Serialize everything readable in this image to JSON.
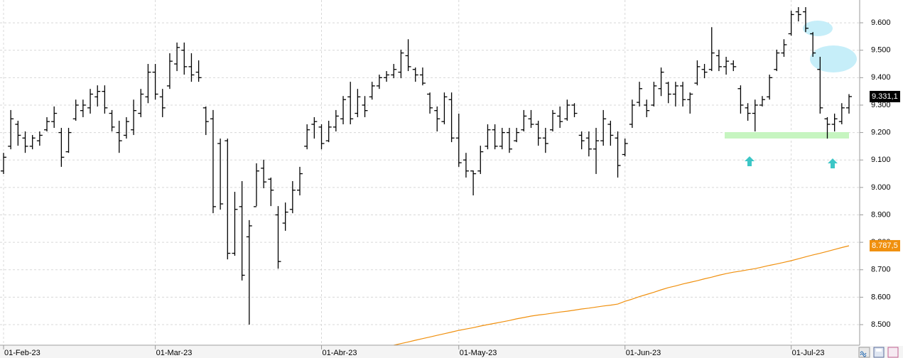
{
  "chart_data": {
    "type": "ohlc",
    "categories": [
      "01-Feb-23",
      null,
      null,
      null,
      null,
      null,
      null,
      null,
      null,
      null,
      null,
      null,
      null,
      null,
      null,
      null,
      null,
      null,
      null,
      null,
      null,
      "01-Mar-23",
      null,
      null,
      null,
      null,
      null,
      null,
      null,
      null,
      null,
      null,
      null,
      null,
      null,
      null,
      null,
      null,
      null,
      null,
      null,
      null,
      null,
      null,
      "01-Abr-23",
      null,
      null,
      null,
      null,
      null,
      null,
      null,
      null,
      null,
      null,
      null,
      null,
      null,
      null,
      null,
      null,
      null,
      null,
      "01-May-23",
      null,
      null,
      null,
      null,
      null,
      null,
      null,
      null,
      null,
      null,
      null,
      null,
      null,
      null,
      null,
      null,
      null,
      null,
      null,
      null,
      null,
      null,
      "01-Jun-23",
      null,
      null,
      null,
      null,
      null,
      null,
      null,
      null,
      null,
      null,
      null,
      null,
      null,
      null,
      null,
      null,
      null,
      null,
      null,
      null,
      null,
      null,
      "01-Jul-23",
      null,
      null,
      null,
      null,
      null,
      null,
      null,
      null
    ],
    "series": [
      {
        "type": "ohlc",
        "color": "#000000",
        "open": [
          9060,
          9150,
          9230,
          9180,
          9150,
          9170,
          9210,
          9240,
          9200,
          9130,
          9250,
          9280,
          9290,
          9330,
          9350,
          9270,
          9200,
          9190,
          9210,
          9270,
          9330,
          9420,
          9330,
          9370,
          9450,
          9500,
          9440,
          9420,
          9290,
          9250,
          9160,
          9170,
          8760,
          8930,
          8820,
          8930,
          9070,
          9030,
          8900,
          8870,
          8920,
          8990,
          9150,
          9230,
          9220,
          9170,
          9220,
          9250,
          9330,
          9270,
          9300,
          9330,
          9370,
          9400,
          9410,
          9420,
          9480,
          9430,
          9410,
          9340,
          9280,
          9240,
          9320,
          9180,
          9100,
          9060,
          9060,
          9150,
          9210,
          9150,
          9200,
          9170,
          9210,
          9250,
          9230,
          9180,
          9210,
          9260,
          9250,
          9300,
          9190,
          9180,
          9140,
          9170,
          9230,
          9180,
          9120,
          9230,
          9310,
          9300,
          9300,
          9360,
          9380,
          9340,
          9370,
          9320,
          9380,
          9430,
          9430,
          9480,
          9440,
          9450,
          9360,
          9290,
          9270,
          9300,
          9330,
          9430,
          9490,
          9560,
          9640,
          9640,
          9560,
          9430,
          9250,
          9230,
          9240,
          9290
        ],
        "high": [
          9126,
          9282,
          9243,
          9204,
          9191,
          9204,
          9256,
          9295,
          9217,
          9217,
          9320,
          9320,
          9359,
          9372,
          9372,
          9282,
          9243,
          9256,
          9320,
          9359,
          9450,
          9450,
          9359,
          9489,
          9528,
          9528,
          9489,
          9463,
          9295,
          9282,
          9178,
          9178,
          8984,
          9023,
          8881,
          9088,
          9101,
          9036,
          8932,
          8945,
          9023,
          9075,
          9230,
          9256,
          9230,
          9243,
          9282,
          9333,
          9385,
          9359,
          9333,
          9385,
          9411,
          9424,
          9450,
          9502,
          9540,
          9437,
          9437,
          9346,
          9295,
          9346,
          9346,
          9269,
          9126,
          9062,
          9152,
          9230,
          9230,
          9217,
          9217,
          9217,
          9282,
          9282,
          9243,
          9217,
          9282,
          9295,
          9320,
          9307,
          9204,
          9204,
          9217,
          9282,
          9243,
          9204,
          9178,
          9320,
          9385,
          9320,
          9385,
          9437,
          9385,
          9385,
          9385,
          9346,
          9463,
          9450,
          9584,
          9502,
          9476,
          9463,
          9372,
          9307,
          9320,
          9333,
          9411,
          9502,
          9540,
          9644,
          9657,
          9657,
          9566,
          9476,
          9256,
          9269,
          9307,
          9340
        ],
        "low": [
          9049,
          9139,
          9152,
          9126,
          9139,
          9152,
          9204,
          9217,
          9075,
          9126,
          9243,
          9256,
          9269,
          9295,
          9269,
          9204,
          9126,
          9178,
          9191,
          9256,
          9307,
          9320,
          9256,
          9359,
          9424,
          9411,
          9385,
          9385,
          9191,
          8906,
          8919,
          8738,
          8751,
          8661,
          8500,
          8932,
          8997,
          8932,
          8704,
          8842,
          8906,
          8971,
          9139,
          9178,
          9139,
          9165,
          9204,
          9230,
          9230,
          9256,
          9256,
          9320,
          9359,
          9385,
          9398,
          9398,
          9424,
          9385,
          9372,
          9269,
          9204,
          9230,
          9165,
          9075,
          9036,
          8971,
          9049,
          9139,
          9139,
          9139,
          9126,
          9165,
          9204,
          9217,
          9152,
          9126,
          9204,
          9217,
          9243,
          9256,
          9139,
          9113,
          9049,
          9152,
          9152,
          9036,
          9113,
          9217,
          9295,
          9256,
          9295,
          9333,
          9307,
          9295,
          9295,
          9269,
          9372,
          9398,
          9424,
          9424,
          9411,
          9424,
          9269,
          9243,
          9204,
          9295,
          9320,
          9424,
          9476,
          9553,
          9605,
          9566,
          9476,
          9269,
          9178,
          9204,
          9230,
          9269
        ],
        "close": [
          9110,
          9250,
          9190,
          9150,
          9180,
          9190,
          9240,
          9270,
          9110,
          9200,
          9300,
          9300,
          9340,
          9350,
          9290,
          9220,
          9170,
          9240,
          9280,
          9340,
          9420,
          9340,
          9290,
          9460,
          9510,
          9440,
          9410,
          9400,
          9240,
          8930,
          8940,
          8760,
          8920,
          8680,
          8860,
          9060,
          9020,
          8990,
          8730,
          8910,
          8990,
          9050,
          9210,
          9240,
          9160,
          9220,
          9260,
          9320,
          9250,
          9330,
          9280,
          9370,
          9400,
          9410,
          9430,
          9490,
          9440,
          9410,
          9380,
          9290,
          9250,
          9330,
          9180,
          9090,
          9060,
          9050,
          9130,
          9210,
          9150,
          9200,
          9140,
          9200,
          9260,
          9230,
          9180,
          9160,
          9270,
          9240,
          9300,
          9270,
          9170,
          9140,
          9170,
          9250,
          9190,
          9080,
          9160,
          9300,
          9360,
          9280,
          9370,
          9420,
          9340,
          9370,
          9320,
          9340,
          9440,
          9420,
          9490,
          9440,
          9460,
          9440,
          9300,
          9270,
          9300,
          9320,
          9400,
          9490,
          9520,
          9630,
          9630,
          9580,
          9490,
          9290,
          9230,
          9250,
          9290,
          9331.1
        ],
        "value_labels": [
          null,
          null,
          null,
          null,
          null,
          null,
          null,
          null,
          null,
          null,
          null,
          null,
          null,
          null,
          null,
          null,
          null,
          null,
          null,
          null,
          null,
          null,
          null,
          null,
          null,
          null,
          null,
          null,
          null,
          null,
          null,
          null,
          null,
          null,
          null,
          null,
          null,
          null,
          null,
          null,
          null,
          null,
          null,
          null,
          null,
          null,
          null,
          null,
          null,
          null,
          null,
          null,
          null,
          null,
          null,
          null,
          null,
          null,
          null,
          null,
          null,
          null,
          null,
          null,
          null,
          null,
          null,
          null,
          null,
          null,
          null,
          null,
          null,
          null,
          null,
          null,
          null,
          null,
          null,
          null,
          null,
          null,
          null,
          null,
          null,
          null,
          null,
          null,
          null,
          null,
          null,
          null,
          null,
          null,
          null,
          null,
          null,
          null,
          null,
          null,
          null,
          null,
          null,
          null,
          null,
          null,
          null,
          null,
          null,
          null,
          null,
          null,
          null,
          null,
          null,
          null,
          null,
          "9.331,1"
        ]
      },
      {
        "type": "line",
        "color": "#f0900e",
        "values": [
          null,
          null,
          null,
          null,
          null,
          null,
          null,
          null,
          null,
          null,
          null,
          null,
          null,
          null,
          null,
          null,
          null,
          null,
          null,
          null,
          null,
          null,
          null,
          null,
          null,
          null,
          null,
          null,
          null,
          null,
          null,
          null,
          null,
          null,
          null,
          null,
          null,
          null,
          null,
          null,
          null,
          null,
          null,
          null,
          null,
          null,
          null,
          null,
          null,
          null,
          null,
          null,
          null,
          null,
          8425,
          8431,
          8437,
          8443,
          8449,
          8455,
          8461,
          8467,
          8473,
          8479,
          8484,
          8489,
          8495,
          8500,
          8505,
          8510,
          8515,
          8521,
          8526,
          8531,
          8535,
          8538,
          8542,
          8546,
          8549,
          8553,
          8557,
          8560,
          8564,
          8568,
          8571,
          8575,
          8585,
          8593,
          8602,
          8610,
          8618,
          8627,
          8635,
          8641,
          8648,
          8654,
          8660,
          8667,
          8673,
          8680,
          8686,
          8691,
          8695,
          8700,
          8704,
          8710,
          8716,
          8721,
          8727,
          8733,
          8740,
          8747,
          8754,
          8760,
          8767,
          8774,
          8781,
          8787.5
        ],
        "value_labels": [
          null,
          null,
          null,
          null,
          null,
          null,
          null,
          null,
          null,
          null,
          null,
          null,
          null,
          null,
          null,
          null,
          null,
          null,
          null,
          null,
          null,
          null,
          null,
          null,
          null,
          null,
          null,
          null,
          null,
          null,
          null,
          null,
          null,
          null,
          null,
          null,
          null,
          null,
          null,
          null,
          null,
          null,
          null,
          null,
          null,
          null,
          null,
          null,
          null,
          null,
          null,
          null,
          null,
          null,
          null,
          null,
          null,
          null,
          null,
          null,
          null,
          null,
          null,
          null,
          null,
          null,
          null,
          null,
          null,
          null,
          null,
          null,
          null,
          null,
          null,
          null,
          null,
          null,
          null,
          null,
          null,
          null,
          null,
          null,
          null,
          null,
          null,
          null,
          null,
          null,
          null,
          null,
          null,
          null,
          null,
          null,
          null,
          null,
          null,
          null,
          null,
          null,
          null,
          null,
          null,
          null,
          null,
          null,
          null,
          null,
          null,
          null,
          null,
          null,
          null,
          null,
          null,
          "8.787,5"
        ]
      }
    ],
    "ylim": [
      8425,
      9683
    ],
    "yticks": [
      {
        "value": 8500,
        "label": "8.500"
      },
      {
        "value": 8600,
        "label": "8.600"
      },
      {
        "value": 8700,
        "label": "8.700"
      },
      {
        "value": 8800,
        "label": "8.800"
      },
      {
        "value": 8900,
        "label": "8.900"
      },
      {
        "value": 9000,
        "label": "9.000"
      },
      {
        "value": 9100,
        "label": "9.100"
      },
      {
        "value": 9200,
        "label": "9.200"
      },
      {
        "value": 9300,
        "label": "9.300"
      },
      {
        "value": 9400,
        "label": "9.400"
      },
      {
        "value": 9500,
        "label": "9.500"
      },
      {
        "value": 9600,
        "label": "9.600"
      }
    ],
    "grid": true
  }
}
